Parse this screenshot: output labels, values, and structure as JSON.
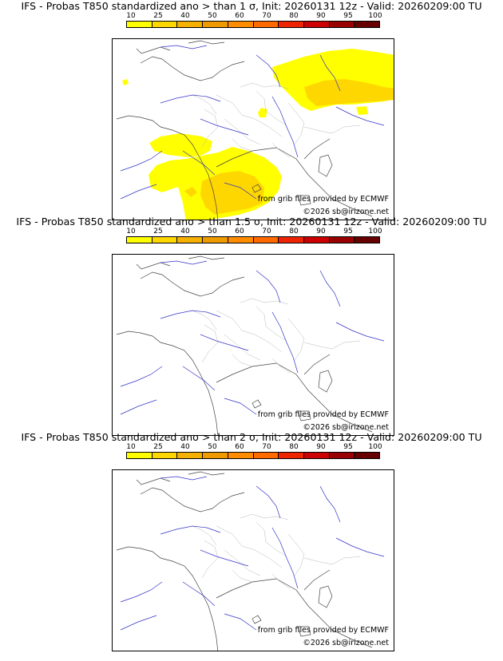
{
  "colorbar": {
    "ticks": [
      "10",
      "25",
      "40",
      "50",
      "60",
      "70",
      "80",
      "90",
      "95",
      "100"
    ],
    "colors": [
      "#ffff00",
      "#ffd700",
      "#f5b000",
      "#ee9a00",
      "#ff8c00",
      "#ff6a00",
      "#ee2400",
      "#cc0000",
      "#990000",
      "#660000"
    ]
  },
  "panels": [
    {
      "title": "IFS - Probas T850  standardized ano > than 1 σ, Init: 20260131 12z - Valid: 20260209:00 TU",
      "credit_source": "from grib files provided by ECMWF",
      "credit_copyright": "©2026 sb@irizone.net"
    },
    {
      "title": "IFS - Probas T850  standardized ano > than 1.5 σ, Init: 20260131 12z - Valid: 20260209:00 TU",
      "credit_source": "from grib files provided by ECMWF",
      "credit_copyright": "©2026 sb@irizone.net"
    },
    {
      "title": "IFS - Probas T850  standardized ano > than 2 σ, Init: 20260131 12z - Valid: 20260209:00 TU",
      "credit_source": "from grib files provided by ECMWF",
      "credit_copyright": "©2026 sb@irizone.net"
    }
  ]
}
